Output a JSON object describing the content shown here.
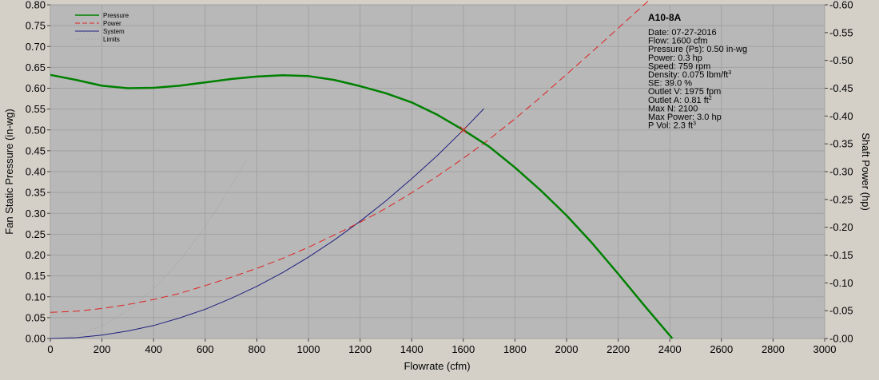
{
  "chart_data": {
    "type": "line",
    "xlabel": "Flowrate (cfm)",
    "ylabel": "Fan Static Pressure (in-wg)",
    "y2label": "Shaft Power (hp)",
    "xlim": [
      0,
      3000
    ],
    "ylim": [
      0,
      0.8
    ],
    "y2lim": [
      0,
      0.6
    ],
    "x_ticks": [
      0,
      200,
      400,
      600,
      800,
      1000,
      1200,
      1400,
      1600,
      1800,
      2000,
      2200,
      2400,
      2600,
      2800,
      3000
    ],
    "y_ticks": [
      "0.00",
      "0.05",
      "0.10",
      "0.15",
      "0.20",
      "0.25",
      "0.30",
      "0.35",
      "0.40",
      "0.45",
      "0.50",
      "0.55",
      "0.60",
      "0.65",
      "0.70",
      "0.75",
      "0.80"
    ],
    "y2_ticks": [
      "-0.00",
      "-0.05",
      "-0.10",
      "-0.15",
      "-0.20",
      "-0.25",
      "-0.30",
      "-0.35",
      "-0.40",
      "-0.45",
      "-0.50",
      "-0.55",
      "-0.60"
    ],
    "grid": true,
    "legend_position": "top-left",
    "series": [
      {
        "name": "Pressure",
        "axis": "left",
        "color": "#008000",
        "style": "solid-thick",
        "x": [
          0,
          100,
          200,
          300,
          400,
          500,
          600,
          700,
          800,
          900,
          1000,
          1100,
          1200,
          1300,
          1400,
          1500,
          1600,
          1700,
          1800,
          1900,
          2000,
          2100,
          2200,
          2300,
          2410
        ],
        "y": [
          0.632,
          0.62,
          0.606,
          0.6,
          0.601,
          0.606,
          0.614,
          0.622,
          0.628,
          0.631,
          0.629,
          0.62,
          0.605,
          0.588,
          0.566,
          0.536,
          0.5,
          0.46,
          0.41,
          0.355,
          0.295,
          0.228,
          0.155,
          0.08,
          0.0
        ]
      },
      {
        "name": "Power",
        "axis": "right",
        "color": "#e02020",
        "style": "dashed",
        "x": [
          0,
          100,
          200,
          300,
          400,
          500,
          600,
          700,
          800,
          900,
          1000,
          1100,
          1200,
          1300,
          1400,
          1500,
          1600,
          1700,
          1800,
          1900,
          2000,
          2100,
          2200,
          2300,
          2330
        ],
        "y": [
          0.047,
          0.049,
          0.054,
          0.061,
          0.07,
          0.081,
          0.095,
          0.11,
          0.126,
          0.144,
          0.164,
          0.186,
          0.209,
          0.234,
          0.262,
          0.292,
          0.324,
          0.358,
          0.395,
          0.434,
          0.475,
          0.516,
          0.558,
          0.6,
          0.612
        ]
      },
      {
        "name": "System",
        "axis": "left",
        "color": "#202080",
        "style": "solid-thin",
        "x": [
          0,
          100,
          200,
          300,
          400,
          500,
          600,
          700,
          800,
          900,
          1000,
          1100,
          1200,
          1300,
          1400,
          1500,
          1600,
          1680
        ],
        "y": [
          0.0,
          0.002,
          0.008,
          0.018,
          0.031,
          0.049,
          0.07,
          0.096,
          0.125,
          0.158,
          0.195,
          0.236,
          0.281,
          0.33,
          0.383,
          0.439,
          0.5,
          0.551
        ]
      },
      {
        "name": "Limits",
        "axis": "left",
        "color": "#a8a8a8",
        "style": "dotted",
        "x": [
          40,
          100,
          200,
          300,
          400,
          500,
          600,
          700,
          760
        ],
        "y": [
          0.0,
          0.007,
          0.03,
          0.067,
          0.119,
          0.186,
          0.268,
          0.365,
          0.43
        ]
      }
    ],
    "operating_point": {
      "x": 1600,
      "y": 0.5,
      "color": "#c03030"
    },
    "info_panel": {
      "title": "A10-8A",
      "lines": [
        {
          "text": "Date: 07-27-2016",
          "sup": ""
        },
        {
          "text": "Flow:  1600 cfm",
          "sup": ""
        },
        {
          "text": "Pressure (Ps):  0.50 in-wg",
          "sup": ""
        },
        {
          "text": "Power:  0.3 hp",
          "sup": ""
        },
        {
          "text": "Speed:   759 rpm",
          "sup": ""
        },
        {
          "text": "Density: 0.075 lbm/ft",
          "sup": "3"
        },
        {
          "text": "SE:  39.0 %",
          "sup": ""
        },
        {
          "text": "Outlet V:   1975 fpm",
          "sup": ""
        },
        {
          "text": "Outlet A:  0.81 ft",
          "sup": "2"
        },
        {
          "text": "Max N:  2100",
          "sup": ""
        },
        {
          "text": "Max Power:   3.0 hp",
          "sup": ""
        },
        {
          "text": "P Vol:   2.3 ft",
          "sup": "3"
        }
      ]
    }
  }
}
